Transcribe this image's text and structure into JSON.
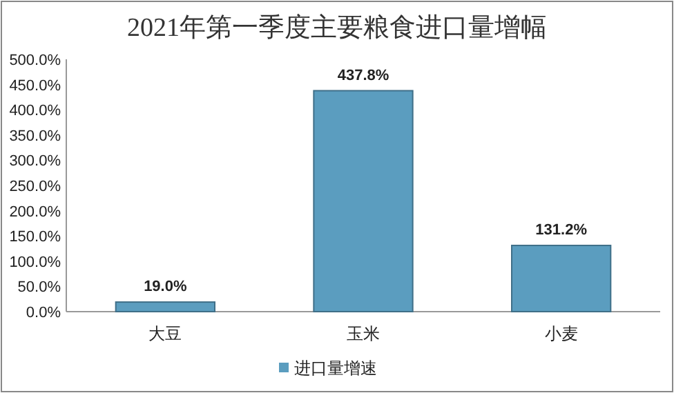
{
  "chart_data": {
    "type": "bar",
    "title": "2021年第一季度主要粮食进口量增幅",
    "categories": [
      "大豆",
      "玉米",
      "小麦"
    ],
    "series": [
      {
        "name": "进口量增速",
        "color": "#5b9dbf",
        "values": [
          19.0,
          437.8,
          131.2
        ],
        "value_labels": [
          "19.0%",
          "437.8%",
          "131.2%"
        ]
      }
    ],
    "ylim": [
      0,
      500
    ],
    "yticks": [
      {
        "value": 0,
        "label": "0.0%"
      },
      {
        "value": 50,
        "label": "50.0%"
      },
      {
        "value": 100,
        "label": "100.0%"
      },
      {
        "value": 150,
        "label": "150.0%"
      },
      {
        "value": 200,
        "label": "200.0%"
      },
      {
        "value": 250,
        "label": "250.0%"
      },
      {
        "value": 300,
        "label": "300.0%"
      },
      {
        "value": 350,
        "label": "350.0%"
      },
      {
        "value": 400,
        "label": "400.0%"
      },
      {
        "value": 450,
        "label": "450.0%"
      },
      {
        "value": 500,
        "label": "500.0%"
      }
    ],
    "grid": false,
    "legend": "bottom"
  }
}
